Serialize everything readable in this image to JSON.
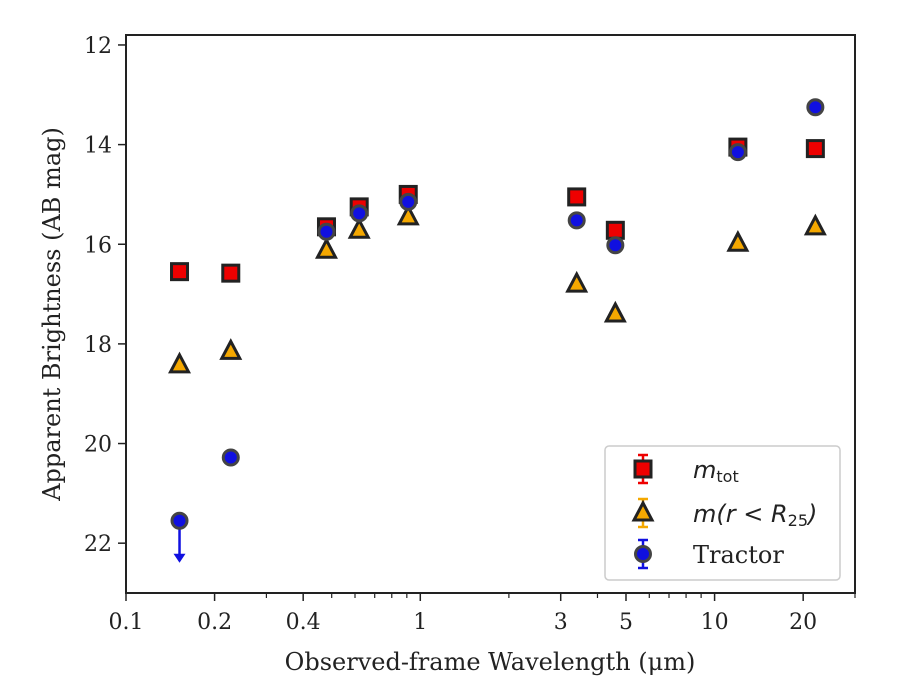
{
  "chart_data": {
    "type": "scatter",
    "xlabel": "Observed-frame Wavelength (μm)",
    "ylabel": "Apparent Brightness (AB mag)",
    "x_scale": "log",
    "xlim": [
      0.1,
      30
    ],
    "ylim": [
      23,
      11.8
    ],
    "y_inverted": true,
    "x_ticks": [
      0.1,
      0.2,
      0.4,
      1,
      3,
      5,
      10,
      20
    ],
    "x_tick_labels": [
      "0.1",
      "0.2",
      "0.4",
      "1",
      "3",
      "5",
      "10",
      "20"
    ],
    "y_ticks": [
      12,
      14,
      16,
      18,
      20,
      22
    ],
    "y_tick_labels": [
      "12",
      "14",
      "16",
      "18",
      "20",
      "22"
    ],
    "grid": false,
    "legend_position": "bottom-right",
    "series": [
      {
        "name": "m_tot",
        "legend_main": "m",
        "legend_sub": "tot",
        "marker": "square",
        "color": "#ee0000",
        "edge_color": "#222222",
        "x": [
          0.152,
          0.227,
          0.48,
          0.62,
          0.91,
          3.4,
          4.6,
          12.0,
          22.0
        ],
        "y": [
          16.55,
          16.58,
          15.65,
          15.25,
          15.0,
          15.05,
          15.72,
          14.05,
          14.08
        ]
      },
      {
        "name": "m(r < R_25)",
        "legend_main": "m(r < R",
        "legend_sub": "25",
        "legend_close": ")",
        "marker": "triangle",
        "color": "#f5a800",
        "edge_color": "#222222",
        "x": [
          0.152,
          0.227,
          0.48,
          0.62,
          0.91,
          3.4,
          4.6,
          12.0,
          22.0
        ],
        "y": [
          18.42,
          18.15,
          16.12,
          15.72,
          15.45,
          16.8,
          17.4,
          15.98,
          15.65
        ]
      },
      {
        "name": "Tractor",
        "marker": "circle",
        "color": "#1010e0",
        "edge_color": "#444444",
        "x": [
          0.152,
          0.227,
          0.48,
          0.62,
          0.91,
          3.4,
          4.6,
          12.0,
          22.0
        ],
        "y": [
          21.55,
          20.28,
          15.75,
          15.38,
          15.15,
          15.52,
          16.02,
          14.15,
          13.25
        ],
        "upper_limit_index": 0
      }
    ]
  }
}
